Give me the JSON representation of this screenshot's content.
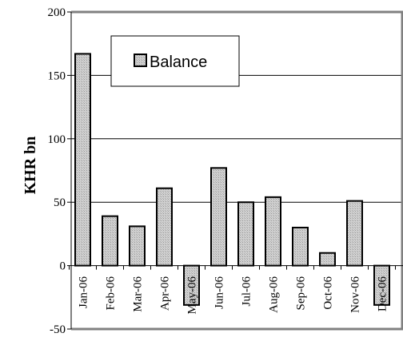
{
  "chart_data": {
    "type": "bar",
    "categories": [
      "Jan-06",
      "Feb-06",
      "Mar-06",
      "Apr-06",
      "May-06",
      "Jun-06",
      "Jul-06",
      "Aug-06",
      "Sep-06",
      "Oct-06",
      "Nov-06",
      "Dec-06"
    ],
    "series": [
      {
        "name": "Balance",
        "values": [
          167,
          39,
          31,
          61,
          -31,
          77,
          50,
          54,
          30,
          10,
          51,
          -31
        ]
      }
    ],
    "title": "",
    "xlabel": "",
    "ylabel": "KHR bn",
    "ylim": [
      -50,
      200
    ],
    "yticks": [
      -50,
      0,
      50,
      100,
      150,
      200
    ],
    "ytick_labels": [
      "-50",
      "0",
      "50",
      "100",
      "150",
      "200"
    ],
    "grid": true,
    "legend": "top-left",
    "colors": {
      "bar_fill": "#c8c8c8",
      "bar_stroke": "#000000",
      "grid": "#000000",
      "frame": "#808080"
    }
  }
}
